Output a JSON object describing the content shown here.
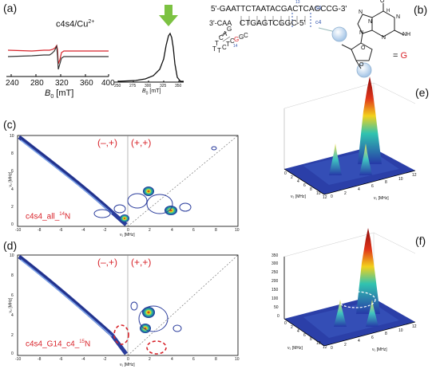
{
  "panels": {
    "a": {
      "label": "(a)",
      "title": "c4s4/Cu",
      "title_sup": "2+",
      "xticks": [
        "240",
        "280",
        "320",
        "360",
        "400"
      ],
      "xlabel_main": "B",
      "xlabel_sub": "0",
      "xlabel_unit": " [mT]",
      "inset": {
        "xticks": [
          "250",
          "275",
          "300",
          "325",
          "350"
        ],
        "xlabel_main": "B",
        "xlabel_sub": "0",
        "xlabel_unit": " [mT]"
      }
    },
    "b": {
      "label": "(b)",
      "strand1": "5'-GAATTCTAATACGACTCAGCCG-3'",
      "strand1_tag": "s4",
      "strand2": "3'-CAA",
      "strand2_right": "CTGAGTCGGC-5'",
      "strand2_tag": "c4",
      "loop_letters": [
        "G",
        "A",
        "C",
        "T",
        "T",
        "T",
        "C",
        "T",
        "C",
        "G",
        "G",
        "C"
      ],
      "pos_label": "14",
      "top_pos_label": "13",
      "legend_eq": "= ",
      "legend_G": "G",
      "base_atoms": [
        "O",
        "N",
        "NH",
        "N",
        "N",
        "H",
        "N",
        "N"
      ],
      "sugar_atoms": [
        "O",
        "O"
      ]
    },
    "c": {
      "label": "(c)",
      "sample": "c4s4_all_",
      "sample_sup": "14",
      "sample_el": "N",
      "quad_left": "(–,+)",
      "quad_right": "(+,+)",
      "yticks": [
        "10",
        "8",
        "6",
        "4",
        "2",
        "0"
      ],
      "xticks": [
        "-10",
        "-8",
        "-6",
        "-4",
        "-2",
        "0",
        "2",
        "4",
        "6",
        "8",
        "10"
      ],
      "xlabel": "ν₁ [MHz]",
      "ylabel": "ν₂ [MHz]"
    },
    "d": {
      "label": "(d)",
      "sample": "c4s4_G14_c4_",
      "sample_sup": "15",
      "sample_el": "N",
      "quad_left": "(–,+)",
      "quad_right": "(+,+)",
      "yticks": [
        "10",
        "8",
        "6",
        "4",
        "2",
        "0"
      ],
      "xticks": [
        "-10",
        "-8",
        "-6",
        "-4",
        "-2",
        "0",
        "2",
        "4",
        "6",
        "8",
        "10"
      ],
      "xlabel": "ν₁ [MHz]",
      "ylabel": "ν₂ [MHz]"
    },
    "e": {
      "label": "(e)",
      "xlabel": "ν₂ [MHz]",
      "ylabel": "ν₁ [MHz]",
      "ticks_a": [
        "0",
        "2",
        "4",
        "6",
        "8",
        "10",
        "12"
      ],
      "ticks_b": [
        "0",
        "2",
        "4",
        "6",
        "8",
        "10",
        "12"
      ]
    },
    "f": {
      "label": "(f)",
      "zticks": [
        "350",
        "300",
        "250",
        "200",
        "150",
        "100",
        "50",
        "0"
      ],
      "xlabel": "ν₂ [MHz]",
      "ylabel": "ν₁ [MHz]",
      "ticks_a": [
        "0",
        "2",
        "4",
        "6",
        "8",
        "10",
        "12"
      ],
      "ticks_b": [
        "0",
        "2",
        "4",
        "6",
        "8",
        "10",
        "12"
      ]
    }
  },
  "colors": {
    "red": "#d8232a",
    "green": "#7cc242",
    "blue": "#2a3c9c",
    "grey": "#333333"
  }
}
